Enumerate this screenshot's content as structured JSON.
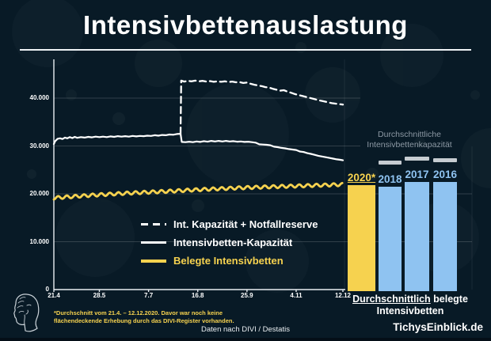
{
  "header": {
    "title": "Intensivbettenauslastung"
  },
  "colors": {
    "background": "#081a26",
    "accent_yellow": "#f6d24f",
    "bar_blue": "#8fc3f1",
    "gray_text": "#8d99a4",
    "gray_marker": "#c6ccd1",
    "line_white": "#ffffff"
  },
  "icons": {
    "brand_logo": "tichys-head-profile-logo"
  },
  "chart_data": {
    "type": "composite",
    "title": "Intensivbettenauslastung",
    "line_chart": {
      "type": "line",
      "x_axis": {
        "tick_labels": [
          "21.4",
          "28.5",
          "7.7",
          "16.8",
          "25.9",
          "4.11",
          "12.12"
        ],
        "tick_days": [
          0,
          37,
          77,
          117,
          157,
          197,
          235
        ],
        "domain_days": [
          0,
          235
        ]
      },
      "y_axis": {
        "tick_labels": [
          "0",
          "10.000",
          "20.000",
          "30.000",
          "40.000"
        ],
        "tick_values": [
          0,
          10000,
          20000,
          30000,
          40000
        ],
        "max": 45000,
        "grid": true
      },
      "series": [
        {
          "name": "Int. Kapazität + Notfallreserve",
          "style": "dashed",
          "color": "#ffffff",
          "points": [
            [
              103,
              32550
            ],
            [
              103.5,
              43650
            ],
            [
              106,
              43450
            ],
            [
              109,
              43600
            ],
            [
              112,
              43500
            ],
            [
              115,
              43650
            ],
            [
              118,
              43500
            ],
            [
              121,
              43600
            ],
            [
              124,
              43450
            ],
            [
              127,
              43550
            ],
            [
              130,
              43400
            ],
            [
              133,
              43500
            ],
            [
              136,
              43400
            ],
            [
              139,
              43500
            ],
            [
              142,
              43350
            ],
            [
              145,
              43450
            ],
            [
              148,
              43300
            ],
            [
              151,
              43350
            ],
            [
              154,
              43150
            ],
            [
              157,
              43250
            ],
            [
              160,
              43000
            ],
            [
              163,
              42800
            ],
            [
              166,
              42650
            ],
            [
              169,
              42500
            ],
            [
              172,
              42300
            ],
            [
              175,
              42200
            ],
            [
              178,
              41950
            ],
            [
              181,
              41750
            ],
            [
              184,
              41550
            ],
            [
              187,
              41650
            ],
            [
              190,
              41350
            ],
            [
              193,
              41100
            ],
            [
              196,
              40850
            ],
            [
              199,
              40650
            ],
            [
              202,
              40450
            ],
            [
              205,
              40250
            ],
            [
              208,
              40050
            ],
            [
              211,
              39850
            ],
            [
              214,
              39650
            ],
            [
              217,
              39450
            ],
            [
              220,
              39300
            ],
            [
              223,
              39100
            ],
            [
              226,
              38950
            ],
            [
              229,
              38850
            ],
            [
              232,
              38750
            ],
            [
              235,
              38650
            ]
          ]
        },
        {
          "name": "Intensivbetten-Kapazität",
          "style": "solid",
          "color": "#ffffff",
          "points": [
            [
              0,
              30400
            ],
            [
              1,
              31000
            ],
            [
              3,
              31500
            ],
            [
              5,
              31600
            ],
            [
              7,
              31450
            ],
            [
              9,
              31750
            ],
            [
              11,
              31600
            ],
            [
              13,
              31850
            ],
            [
              15,
              31650
            ],
            [
              17,
              31900
            ],
            [
              19,
              31700
            ],
            [
              22,
              31850
            ],
            [
              25,
              31750
            ],
            [
              28,
              31900
            ],
            [
              31,
              31800
            ],
            [
              34,
              31950
            ],
            [
              37,
              31850
            ],
            [
              40,
              31950
            ],
            [
              43,
              31850
            ],
            [
              46,
              32000
            ],
            [
              49,
              31900
            ],
            [
              52,
              32050
            ],
            [
              55,
              31950
            ],
            [
              58,
              32050
            ],
            [
              61,
              31950
            ],
            [
              64,
              32100
            ],
            [
              67,
              32000
            ],
            [
              70,
              32100
            ],
            [
              73,
              32050
            ],
            [
              76,
              32150
            ],
            [
              79,
              32100
            ],
            [
              82,
              32250
            ],
            [
              85,
              32150
            ],
            [
              88,
              32300
            ],
            [
              91,
              32250
            ],
            [
              94,
              32400
            ],
            [
              97,
              32350
            ],
            [
              100,
              32500
            ],
            [
              103,
              32550
            ],
            [
              104,
              30850
            ],
            [
              107,
              30800
            ],
            [
              110,
              30900
            ],
            [
              113,
              30800
            ],
            [
              116,
              30950
            ],
            [
              119,
              30850
            ],
            [
              122,
              31000
            ],
            [
              125,
              30900
            ],
            [
              128,
              31050
            ],
            [
              131,
              30950
            ],
            [
              134,
              31050
            ],
            [
              137,
              30950
            ],
            [
              140,
              31050
            ],
            [
              143,
              30950
            ],
            [
              146,
              31000
            ],
            [
              149,
              30900
            ],
            [
              152,
              30950
            ],
            [
              155,
              30850
            ],
            [
              158,
              30900
            ],
            [
              161,
              30800
            ],
            [
              164,
              30700
            ],
            [
              167,
              30350
            ],
            [
              170,
              30300
            ],
            [
              173,
              30250
            ],
            [
              176,
              30150
            ],
            [
              179,
              29850
            ],
            [
              182,
              29750
            ],
            [
              185,
              29600
            ],
            [
              188,
              29500
            ],
            [
              191,
              29350
            ],
            [
              194,
              29250
            ],
            [
              197,
              29150
            ],
            [
              200,
              28850
            ],
            [
              203,
              28750
            ],
            [
              206,
              28500
            ],
            [
              209,
              28350
            ],
            [
              212,
              28150
            ],
            [
              215,
              27950
            ],
            [
              218,
              27800
            ],
            [
              221,
              27650
            ],
            [
              224,
              27500
            ],
            [
              227,
              27350
            ],
            [
              230,
              27200
            ],
            [
              233,
              27100
            ],
            [
              235,
              27000
            ]
          ]
        },
        {
          "name": "Belegte Intensivbetten",
          "style": "solid",
          "color": "#f6d24f",
          "baseline_points": [
            [
              0,
              19150
            ],
            [
              30,
              19700
            ],
            [
              60,
              20150
            ],
            [
              90,
              20500
            ],
            [
              120,
              20900
            ],
            [
              150,
              21250
            ],
            [
              180,
              21500
            ],
            [
              210,
              21750
            ],
            [
              235,
              21950
            ]
          ],
          "oscillation": {
            "period_days": 7,
            "amplitude": 320
          }
        }
      ]
    },
    "legend": {
      "position": "inside-bottom-center",
      "items": [
        {
          "label": "Int. Kapazität + Notfallreserve",
          "style": "dashed",
          "color": "#ffffff"
        },
        {
          "label": "Intensivbetten-Kapazität",
          "style": "solid",
          "color": "#ffffff"
        },
        {
          "label": "Belegte Intensivbetten",
          "style": "solid",
          "color": "#f6d24f"
        }
      ]
    },
    "bar_chart": {
      "type": "bar",
      "heading_line1": "Durchschnittliche",
      "heading_line2": "Intensivbettenkapazität",
      "bars": [
        {
          "label": "2020*",
          "value": 21900,
          "color": "#f6d24f",
          "capacity_marker": null
        },
        {
          "label": "2018",
          "value": 21500,
          "color": "#8fc3f1",
          "capacity_marker": 26500
        },
        {
          "label": "2017",
          "value": 22500,
          "color": "#8fc3f1",
          "capacity_marker": 27200
        },
        {
          "label": "2016",
          "value": 22500,
          "color": "#8fc3f1",
          "capacity_marker": 26900
        }
      ],
      "caption_emph": "Durchschnittlich",
      "caption_rest": " belegte",
      "caption_line2": "Intensivbetten"
    }
  },
  "footer": {
    "footnote_line1": "*Durchschnitt vom 21.4. – 12.12.2020. Davor war noch keine",
    "footnote_line2": "flächendeckende Erhebung durch das DIVI-Register vorhanden.",
    "source": "Daten nach DIVI / Destatis",
    "brand": "TichysEinblick.de"
  }
}
